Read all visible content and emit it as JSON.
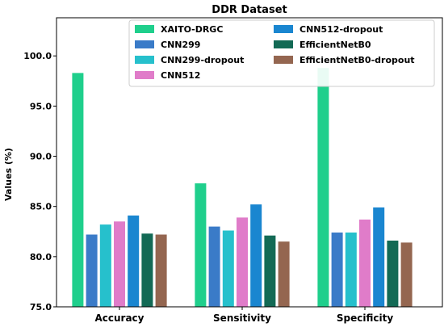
{
  "chart_data": {
    "type": "bar",
    "title": "DDR Dataset",
    "xlabel": "",
    "ylabel": "Values (%)",
    "ylim": [
      75,
      103.8
    ],
    "yticks": [
      "75.0",
      "80.0",
      "85.0",
      "90.0",
      "95.0",
      "100.0"
    ],
    "grid": false,
    "legend_placement": "top",
    "categories": [
      "Accuracy",
      "Sensitivity",
      "Specificity"
    ],
    "series": [
      {
        "name": "XAITO-DRGC",
        "color": "#1fcf8c",
        "values": [
          98.3,
          87.3,
          98.8
        ]
      },
      {
        "name": "CNN299",
        "color": "#3a7bc8",
        "values": [
          82.2,
          83.0,
          82.4
        ]
      },
      {
        "name": "CNN299-dropout",
        "color": "#26c0cc",
        "values": [
          83.2,
          82.6,
          82.4
        ]
      },
      {
        "name": "CNN512",
        "color": "#e07cc9",
        "values": [
          83.5,
          83.9,
          83.7
        ]
      },
      {
        "name": "CNN512-dropout",
        "color": "#1a86d0",
        "values": [
          84.1,
          85.2,
          84.9
        ]
      },
      {
        "name": "EfficientNetB0",
        "color": "#136a55",
        "values": [
          82.3,
          82.1,
          81.6
        ]
      },
      {
        "name": "EfficientNetB0-dropout",
        "color": "#946650",
        "values": [
          82.2,
          81.5,
          81.4
        ]
      }
    ]
  }
}
